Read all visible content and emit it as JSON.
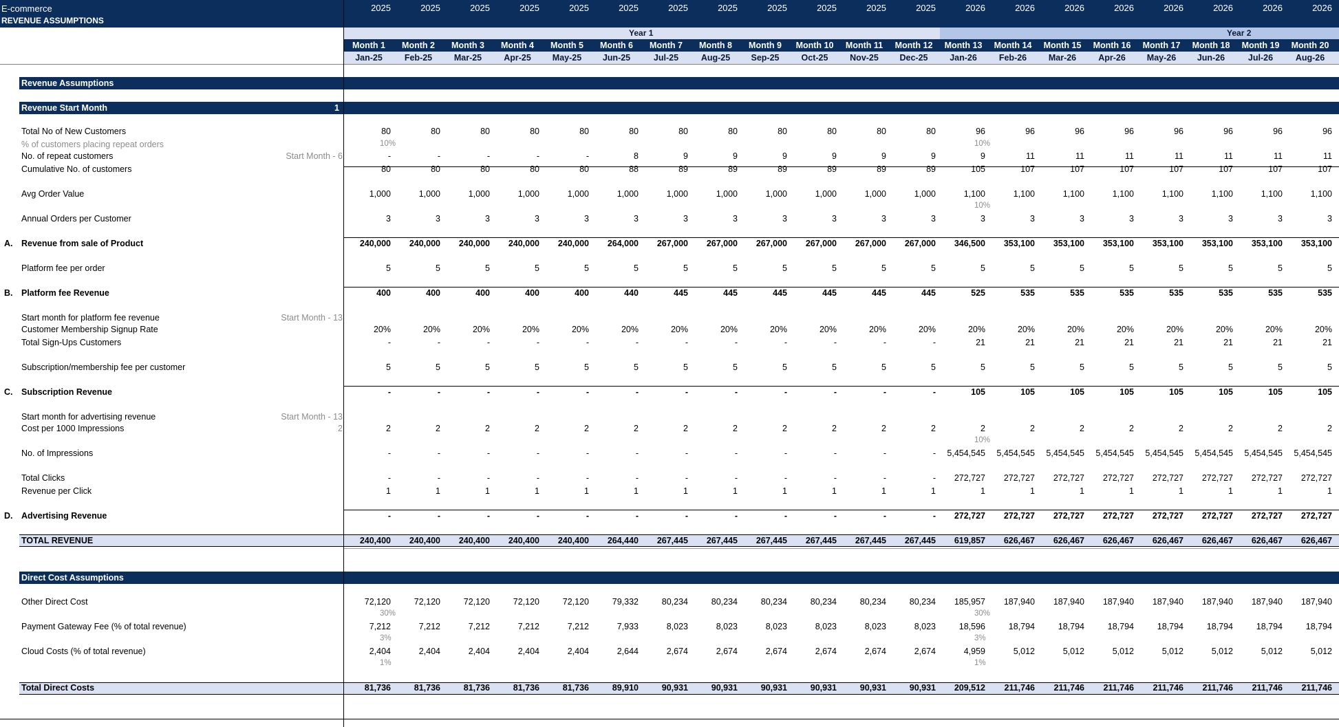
{
  "sheet": {
    "title_line1": "E-commerce",
    "title_line2": "REVENUE ASSUMPTIONS"
  },
  "years": [
    "2025",
    "2025",
    "2025",
    "2025",
    "2025",
    "2025",
    "2025",
    "2025",
    "2025",
    "2025",
    "2025",
    "2025",
    "2026",
    "2026",
    "2026",
    "2026",
    "2026",
    "2026",
    "2026",
    "2026"
  ],
  "year_groups": [
    {
      "label": "Year 1"
    },
    {
      "label": "Year 2"
    }
  ],
  "months": [
    "Month 1",
    "Month 2",
    "Month 3",
    "Month 4",
    "Month 5",
    "Month 6",
    "Month 7",
    "Month 8",
    "Month 9",
    "Month 10",
    "Month 11",
    "Month 12",
    "Month 13",
    "Month 14",
    "Month 15",
    "Month 16",
    "Month 17",
    "Month 18",
    "Month 19",
    "Month 20"
  ],
  "dates": [
    "Jan-25",
    "Feb-25",
    "Mar-25",
    "Apr-25",
    "May-25",
    "Jun-25",
    "Jul-25",
    "Aug-25",
    "Sep-25",
    "Oct-25",
    "Nov-25",
    "Dec-25",
    "Jan-26",
    "Feb-26",
    "Mar-26",
    "Apr-26",
    "May-26",
    "Jun-26",
    "Jul-26",
    "Aug-26"
  ],
  "sections": {
    "revenue_assumptions": "Revenue Assumptions",
    "revenue_start_month": "Revenue Start Month",
    "revenue_start_month_value": "1",
    "direct_cost_assumptions": "Direct Cost Assumptions"
  },
  "rows": [
    {
      "id": "new_customers",
      "label": "Total No of New Customers",
      "y": 155,
      "values": [
        "80",
        "80",
        "80",
        "80",
        "80",
        "80",
        "80",
        "80",
        "80",
        "80",
        "80",
        "80",
        "96",
        "96",
        "96",
        "96",
        "96",
        "96",
        "96",
        "96"
      ]
    },
    {
      "id": "repeat_pct",
      "label": "% of customers placing repeat orders",
      "y": 170,
      "grey": true,
      "sub": [
        {
          "col": 0,
          "text": "10%"
        },
        {
          "col": 12,
          "text": "10%"
        }
      ]
    },
    {
      "id": "repeat_customers",
      "label": "No. of repeat customers",
      "y": 184,
      "note": "Start Month -  6",
      "values": [
        "-",
        "-",
        "-",
        "-",
        "-",
        "8",
        "9",
        "9",
        "9",
        "9",
        "9",
        "9",
        "9",
        "11",
        "11",
        "11",
        "11",
        "11",
        "11",
        "11"
      ]
    },
    {
      "id": "cumulative",
      "label": "Cumulative No. of customers",
      "y": 199,
      "values": [
        "80",
        "80",
        "80",
        "80",
        "80",
        "88",
        "89",
        "89",
        "89",
        "89",
        "89",
        "89",
        "105",
        "107",
        "107",
        "107",
        "107",
        "107",
        "107",
        "107"
      ]
    },
    {
      "id": "aov",
      "label": "Avg Order Value",
      "y": 228,
      "values": [
        "1,000",
        "1,000",
        "1,000",
        "1,000",
        "1,000",
        "1,000",
        "1,000",
        "1,000",
        "1,000",
        "1,000",
        "1,000",
        "1,000",
        "1,100",
        "1,100",
        "1,100",
        "1,100",
        "1,100",
        "1,100",
        "1,100",
        "1,100"
      ],
      "sub": [
        {
          "col": 12,
          "text": "10%"
        }
      ]
    },
    {
      "id": "orders",
      "label": "Annual Orders per Customer",
      "y": 257,
      "values": [
        "3",
        "3",
        "3",
        "3",
        "3",
        "3",
        "3",
        "3",
        "3",
        "3",
        "3",
        "3",
        "3",
        "3",
        "3",
        "3",
        "3",
        "3",
        "3",
        "3"
      ]
    },
    {
      "id": "rev_product",
      "prefix": "A.",
      "label": "Revenue from sale of Product",
      "y": 286,
      "bold": true,
      "values": [
        "240,000",
        "240,000",
        "240,000",
        "240,000",
        "240,000",
        "264,000",
        "267,000",
        "267,000",
        "267,000",
        "267,000",
        "267,000",
        "267,000",
        "346,500",
        "353,100",
        "353,100",
        "353,100",
        "353,100",
        "353,100",
        "353,100",
        "353,100"
      ]
    },
    {
      "id": "platform_fee",
      "label": "Platform fee per order",
      "y": 315,
      "values": [
        "5",
        "5",
        "5",
        "5",
        "5",
        "5",
        "5",
        "5",
        "5",
        "5",
        "5",
        "5",
        "5",
        "5",
        "5",
        "5",
        "5",
        "5",
        "5",
        "5"
      ]
    },
    {
      "id": "platform_rev",
      "prefix": "B.",
      "label": "Platform fee Revenue",
      "y": 344,
      "bold": true,
      "values": [
        "400",
        "400",
        "400",
        "400",
        "400",
        "440",
        "445",
        "445",
        "445",
        "445",
        "445",
        "445",
        "525",
        "535",
        "535",
        "535",
        "535",
        "535",
        "535",
        "535"
      ]
    },
    {
      "id": "start_platform",
      "label": "Start month for platform fee revenue",
      "y": 373,
      "note": "Start Month -  13"
    },
    {
      "id": "signup_rate",
      "label": "Customer Membership Signup Rate",
      "y": 387,
      "values": [
        "20%",
        "20%",
        "20%",
        "20%",
        "20%",
        "20%",
        "20%",
        "20%",
        "20%",
        "20%",
        "20%",
        "20%",
        "20%",
        "20%",
        "20%",
        "20%",
        "20%",
        "20%",
        "20%",
        "20%"
      ]
    },
    {
      "id": "signups",
      "label": "Total Sign-Ups Customers",
      "y": 402,
      "values": [
        "-",
        "-",
        "-",
        "-",
        "-",
        "-",
        "-",
        "-",
        "-",
        "-",
        "-",
        "-",
        "21",
        "21",
        "21",
        "21",
        "21",
        "21",
        "21",
        "21"
      ]
    },
    {
      "id": "sub_fee",
      "label": "Subscription/membership fee per customer",
      "y": 431,
      "values": [
        "5",
        "5",
        "5",
        "5",
        "5",
        "5",
        "5",
        "5",
        "5",
        "5",
        "5",
        "5",
        "5",
        "5",
        "5",
        "5",
        "5",
        "5",
        "5",
        "5"
      ]
    },
    {
      "id": "sub_rev",
      "prefix": "C.",
      "label": "Subscription Revenue",
      "y": 460,
      "bold": true,
      "values": [
        "-",
        "-",
        "-",
        "-",
        "-",
        "-",
        "-",
        "-",
        "-",
        "-",
        "-",
        "-",
        "105",
        "105",
        "105",
        "105",
        "105",
        "105",
        "105",
        "105"
      ]
    },
    {
      "id": "start_adv",
      "label": "Start month for advertising revenue",
      "y": 489,
      "note": "Start Month -  13"
    },
    {
      "id": "cpm",
      "label": "Cost per 1000 Impressions",
      "y": 503,
      "note": "2",
      "values": [
        "2",
        "2",
        "2",
        "2",
        "2",
        "2",
        "2",
        "2",
        "2",
        "2",
        "2",
        "2",
        "2",
        "2",
        "2",
        "2",
        "2",
        "2",
        "2",
        "2"
      ],
      "sub": [
        {
          "col": 12,
          "text": "10%"
        }
      ]
    },
    {
      "id": "impressions",
      "label": "No. of  Impressions",
      "y": 532,
      "values": [
        "-",
        "-",
        "-",
        "-",
        "-",
        "-",
        "-",
        "-",
        "-",
        "-",
        "-",
        "-",
        "5,454,545",
        "5,454,545",
        "5,454,545",
        "5,454,545",
        "5,454,545",
        "5,454,545",
        "5,454,545",
        "5,454,545"
      ]
    },
    {
      "id": "clicks",
      "label": "Total Clicks",
      "y": 561,
      "values": [
        "-",
        "-",
        "-",
        "-",
        "-",
        "-",
        "-",
        "-",
        "-",
        "-",
        "-",
        "-",
        "272,727",
        "272,727",
        "272,727",
        "272,727",
        "272,727",
        "272,727",
        "272,727",
        "272,727"
      ]
    },
    {
      "id": "rev_click",
      "label": "Revenue per Click",
      "y": 576,
      "values": [
        "1",
        "1",
        "1",
        "1",
        "1",
        "1",
        "1",
        "1",
        "1",
        "1",
        "1",
        "1",
        "1",
        "1",
        "1",
        "1",
        "1",
        "1",
        "1",
        "1"
      ]
    },
    {
      "id": "adv_rev",
      "prefix": "D.",
      "label": "Advertising Revenue",
      "y": 605,
      "bold": true,
      "values": [
        "-",
        "-",
        "-",
        "-",
        "-",
        "-",
        "-",
        "-",
        "-",
        "-",
        "-",
        "-",
        "272,727",
        "272,727",
        "272,727",
        "272,727",
        "272,727",
        "272,727",
        "272,727",
        "272,727"
      ]
    },
    {
      "id": "total_rev",
      "label": "TOTAL REVENUE",
      "y": 634,
      "bold": true,
      "values": [
        "240,400",
        "240,400",
        "240,400",
        "240,400",
        "240,400",
        "264,440",
        "267,445",
        "267,445",
        "267,445",
        "267,445",
        "267,445",
        "267,445",
        "619,857",
        "626,467",
        "626,467",
        "626,467",
        "626,467",
        "626,467",
        "626,467",
        "626,467"
      ]
    },
    {
      "id": "other_direct",
      "label": "Other Direct Cost",
      "y": 706,
      "values": [
        "72,120",
        "72,120",
        "72,120",
        "72,120",
        "72,120",
        "79,332",
        "80,234",
        "80,234",
        "80,234",
        "80,234",
        "80,234",
        "80,234",
        "185,957",
        "187,940",
        "187,940",
        "187,940",
        "187,940",
        "187,940",
        "187,940",
        "187,940"
      ],
      "sub": [
        {
          "col": 0,
          "text": "30%"
        },
        {
          "col": 12,
          "text": "30%"
        }
      ]
    },
    {
      "id": "gateway",
      "label": "Payment Gateway Fee (% of total revenue)",
      "y": 735,
      "values": [
        "7,212",
        "7,212",
        "7,212",
        "7,212",
        "7,212",
        "7,933",
        "8,023",
        "8,023",
        "8,023",
        "8,023",
        "8,023",
        "8,023",
        "18,596",
        "18,794",
        "18,794",
        "18,794",
        "18,794",
        "18,794",
        "18,794",
        "18,794"
      ],
      "sub": [
        {
          "col": 0,
          "text": "3%"
        },
        {
          "col": 12,
          "text": "3%"
        }
      ]
    },
    {
      "id": "cloud",
      "label": "Cloud Costs (% of total revenue)",
      "y": 764,
      "values": [
        "2,404",
        "2,404",
        "2,404",
        "2,404",
        "2,404",
        "2,644",
        "2,674",
        "2,674",
        "2,674",
        "2,674",
        "2,674",
        "2,674",
        "4,959",
        "5,012",
        "5,012",
        "5,012",
        "5,012",
        "5,012",
        "5,012",
        "5,012"
      ],
      "sub": [
        {
          "col": 0,
          "text": "1%"
        },
        {
          "col": 12,
          "text": "1%"
        }
      ]
    },
    {
      "id": "total_direct",
      "label": "Total Direct Costs",
      "y": 807,
      "bold": true,
      "values": [
        "81,736",
        "81,736",
        "81,736",
        "81,736",
        "81,736",
        "89,910",
        "90,931",
        "90,931",
        "90,931",
        "90,931",
        "90,931",
        "90,931",
        "209,512",
        "211,746",
        "211,746",
        "211,746",
        "211,746",
        "211,746",
        "211,746",
        "211,746"
      ]
    }
  ]
}
